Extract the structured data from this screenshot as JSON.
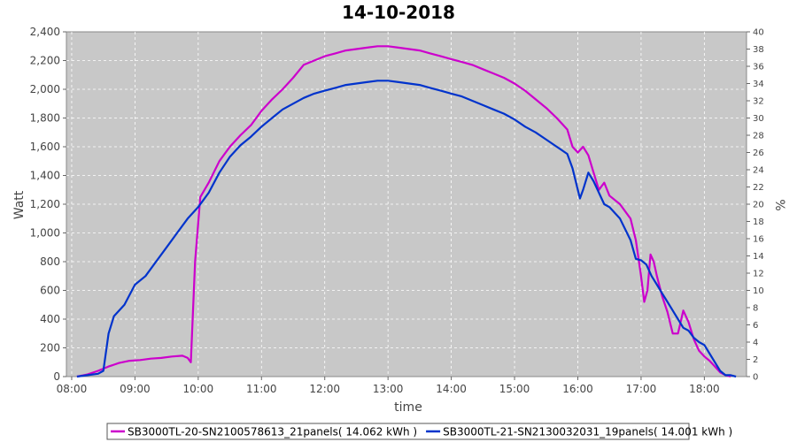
{
  "chart_data": {
    "type": "line",
    "title": "14-10-2018",
    "xlabel": "time",
    "ylabel": "Watt",
    "y2label": "%",
    "xlim": [
      "07:55",
      "18:40"
    ],
    "ylim": [
      0,
      2400
    ],
    "y2lim": [
      0,
      40
    ],
    "x_ticks": [
      "08:00",
      "09:00",
      "10:00",
      "11:00",
      "12:00",
      "13:00",
      "14:00",
      "15:00",
      "16:00",
      "17:00",
      "18:00"
    ],
    "y_ticks": [
      "0",
      "200",
      "400",
      "600",
      "800",
      "1,000",
      "1,200",
      "1,400",
      "1,600",
      "1,800",
      "2,000",
      "2,200",
      "2,400"
    ],
    "y2_ticks": [
      "0",
      "2",
      "4",
      "6",
      "8",
      "10",
      "12",
      "14",
      "16",
      "18",
      "20",
      "22",
      "24",
      "26",
      "28",
      "30",
      "32",
      "34",
      "36",
      "38",
      "40"
    ],
    "grid": true,
    "plot_background": "#c8c8c8",
    "legend_position": "bottom",
    "series": [
      {
        "name": "SB3000TL-20-SN2100578613_21panels( 14.062 kWh )",
        "color": "#cc00cc",
        "points": [
          [
            "08:05",
            0
          ],
          [
            "08:15",
            15
          ],
          [
            "08:25",
            40
          ],
          [
            "08:35",
            70
          ],
          [
            "08:45",
            95
          ],
          [
            "08:55",
            110
          ],
          [
            "09:05",
            115
          ],
          [
            "09:15",
            125
          ],
          [
            "09:25",
            130
          ],
          [
            "09:35",
            140
          ],
          [
            "09:45",
            145
          ],
          [
            "09:50",
            130
          ],
          [
            "09:53",
            100
          ],
          [
            "09:57",
            800
          ],
          [
            "10:02",
            1250
          ],
          [
            "10:10",
            1350
          ],
          [
            "10:20",
            1500
          ],
          [
            "10:30",
            1600
          ],
          [
            "10:40",
            1680
          ],
          [
            "10:50",
            1750
          ],
          [
            "11:00",
            1850
          ],
          [
            "11:10",
            1930
          ],
          [
            "11:20",
            2000
          ],
          [
            "11:30",
            2080
          ],
          [
            "11:40",
            2170
          ],
          [
            "11:50",
            2200
          ],
          [
            "12:00",
            2230
          ],
          [
            "12:10",
            2250
          ],
          [
            "12:20",
            2270
          ],
          [
            "12:30",
            2280
          ],
          [
            "12:40",
            2290
          ],
          [
            "12:50",
            2300
          ],
          [
            "13:00",
            2300
          ],
          [
            "13:10",
            2290
          ],
          [
            "13:20",
            2280
          ],
          [
            "13:30",
            2270
          ],
          [
            "13:40",
            2250
          ],
          [
            "13:50",
            2230
          ],
          [
            "14:00",
            2210
          ],
          [
            "14:10",
            2190
          ],
          [
            "14:20",
            2170
          ],
          [
            "14:30",
            2140
          ],
          [
            "14:40",
            2110
          ],
          [
            "14:50",
            2080
          ],
          [
            "15:00",
            2040
          ],
          [
            "15:10",
            1990
          ],
          [
            "15:20",
            1930
          ],
          [
            "15:30",
            1870
          ],
          [
            "15:40",
            1800
          ],
          [
            "15:50",
            1720
          ],
          [
            "15:55",
            1600
          ],
          [
            "16:00",
            1560
          ],
          [
            "16:05",
            1600
          ],
          [
            "16:10",
            1540
          ],
          [
            "16:15",
            1420
          ],
          [
            "16:20",
            1300
          ],
          [
            "16:25",
            1350
          ],
          [
            "16:30",
            1260
          ],
          [
            "16:40",
            1200
          ],
          [
            "16:50",
            1100
          ],
          [
            "16:55",
            950
          ],
          [
            "17:00",
            700
          ],
          [
            "17:03",
            520
          ],
          [
            "17:06",
            600
          ],
          [
            "17:09",
            850
          ],
          [
            "17:12",
            800
          ],
          [
            "17:15",
            700
          ],
          [
            "17:20",
            560
          ],
          [
            "17:25",
            450
          ],
          [
            "17:30",
            300
          ],
          [
            "17:35",
            300
          ],
          [
            "17:40",
            460
          ],
          [
            "17:45",
            380
          ],
          [
            "17:50",
            260
          ],
          [
            "17:55",
            180
          ],
          [
            "18:00",
            140
          ],
          [
            "18:05",
            110
          ],
          [
            "18:10",
            70
          ],
          [
            "18:15",
            30
          ],
          [
            "18:20",
            10
          ],
          [
            "18:25",
            0
          ]
        ]
      },
      {
        "name": "SB3000TL-21-SN2130032031_19panels( 14.001 kWh )",
        "color": "#0033cc",
        "points": [
          [
            "08:05",
            0
          ],
          [
            "08:15",
            10
          ],
          [
            "08:25",
            20
          ],
          [
            "08:30",
            40
          ],
          [
            "08:35",
            300
          ],
          [
            "08:40",
            420
          ],
          [
            "08:50",
            500
          ],
          [
            "09:00",
            640
          ],
          [
            "09:10",
            700
          ],
          [
            "09:20",
            800
          ],
          [
            "09:30",
            900
          ],
          [
            "09:40",
            1000
          ],
          [
            "09:50",
            1100
          ],
          [
            "10:00",
            1180
          ],
          [
            "10:10",
            1280
          ],
          [
            "10:20",
            1420
          ],
          [
            "10:30",
            1530
          ],
          [
            "10:40",
            1610
          ],
          [
            "10:50",
            1670
          ],
          [
            "11:00",
            1740
          ],
          [
            "11:10",
            1800
          ],
          [
            "11:20",
            1860
          ],
          [
            "11:30",
            1900
          ],
          [
            "11:40",
            1940
          ],
          [
            "11:50",
            1970
          ],
          [
            "12:00",
            1990
          ],
          [
            "12:10",
            2010
          ],
          [
            "12:20",
            2030
          ],
          [
            "12:30",
            2040
          ],
          [
            "12:40",
            2050
          ],
          [
            "12:50",
            2060
          ],
          [
            "13:00",
            2060
          ],
          [
            "13:10",
            2050
          ],
          [
            "13:20",
            2040
          ],
          [
            "13:30",
            2030
          ],
          [
            "13:40",
            2010
          ],
          [
            "13:50",
            1990
          ],
          [
            "14:00",
            1970
          ],
          [
            "14:10",
            1950
          ],
          [
            "14:20",
            1920
          ],
          [
            "14:30",
            1890
          ],
          [
            "14:40",
            1860
          ],
          [
            "14:50",
            1830
          ],
          [
            "15:00",
            1790
          ],
          [
            "15:10",
            1740
          ],
          [
            "15:20",
            1700
          ],
          [
            "15:30",
            1650
          ],
          [
            "15:40",
            1600
          ],
          [
            "15:50",
            1550
          ],
          [
            "15:55",
            1450
          ],
          [
            "16:00",
            1300
          ],
          [
            "16:02",
            1240
          ],
          [
            "16:05",
            1300
          ],
          [
            "16:10",
            1420
          ],
          [
            "16:15",
            1360
          ],
          [
            "16:20",
            1280
          ],
          [
            "16:25",
            1200
          ],
          [
            "16:30",
            1180
          ],
          [
            "16:40",
            1100
          ],
          [
            "16:50",
            950
          ],
          [
            "16:55",
            820
          ],
          [
            "17:00",
            810
          ],
          [
            "17:05",
            780
          ],
          [
            "17:10",
            700
          ],
          [
            "17:15",
            640
          ],
          [
            "17:20",
            580
          ],
          [
            "17:25",
            520
          ],
          [
            "17:30",
            460
          ],
          [
            "17:35",
            400
          ],
          [
            "17:40",
            340
          ],
          [
            "17:45",
            320
          ],
          [
            "17:50",
            270
          ],
          [
            "17:55",
            240
          ],
          [
            "18:00",
            220
          ],
          [
            "18:05",
            160
          ],
          [
            "18:10",
            100
          ],
          [
            "18:15",
            40
          ],
          [
            "18:20",
            10
          ],
          [
            "18:25",
            10
          ],
          [
            "18:30",
            0
          ]
        ]
      }
    ]
  }
}
